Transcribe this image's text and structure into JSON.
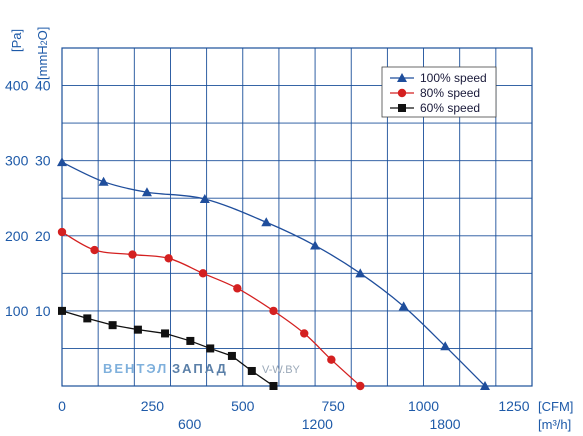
{
  "chart_data": {
    "type": "line",
    "x_unit_top": "[CFM]",
    "x_unit_bottom": "[m³/h]",
    "y_unit_left": "[Pa]",
    "y_unit_right_prefix": "[mmH",
    "y_unit_right_sub": "2",
    "y_unit_right_suffix": "O]",
    "xlim": [
      0,
      1300
    ],
    "ylim": [
      0,
      450
    ],
    "x_ticks_cfm": [
      0,
      250,
      500,
      750,
      1000,
      1250
    ],
    "x_ticks_cfm_labels": [
      "0",
      "250",
      "500",
      "750",
      "1000",
      "1250"
    ],
    "x_ticks_m3h": [
      600,
      1200,
      1800
    ],
    "x_ticks_m3h_labels": [
      "600",
      "1200",
      "1800"
    ],
    "y_ticks_pa": [
      100,
      200,
      300,
      400
    ],
    "y_ticks_pa_labels": [
      "100",
      "200",
      "300",
      "400"
    ],
    "y_ticks_mmh2o_labels": [
      "10",
      "20",
      "30",
      "40"
    ],
    "grid": true,
    "legend_position": "top-right",
    "series": [
      {
        "name": "100%  speed",
        "color": "#1f4e9c",
        "marker": "triangle",
        "x": [
          0,
          115,
          235,
          395,
          565,
          700,
          825,
          945,
          1060,
          1170
        ],
        "y": [
          298,
          272,
          258,
          249,
          218,
          187,
          150,
          106,
          53,
          0
        ]
      },
      {
        "name": "80%  speed",
        "color": "#d42020",
        "marker": "circle",
        "x": [
          0,
          90,
          195,
          295,
          390,
          485,
          585,
          670,
          745,
          825
        ],
        "y": [
          205,
          181,
          175,
          170,
          150,
          130,
          100,
          70,
          35,
          0
        ]
      },
      {
        "name": "60%  speed",
        "color": "#111111",
        "marker": "square",
        "x": [
          0,
          70,
          140,
          210,
          285,
          355,
          410,
          470,
          525,
          585
        ],
        "y": [
          100,
          90,
          81,
          75,
          70,
          60,
          50,
          40,
          20,
          0
        ]
      }
    ]
  },
  "watermark": {
    "part1": "ВЕНТЭЛ",
    "part2": "ЗАПАД",
    "part3": "V-W.BY"
  }
}
